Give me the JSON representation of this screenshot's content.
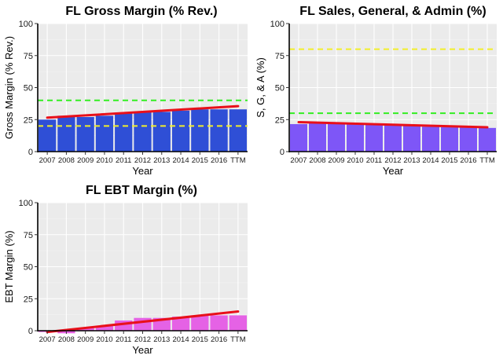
{
  "chart_data": [
    {
      "type": "bar",
      "title": "FL Gross Margin (% Rev.)",
      "xlabel": "Year",
      "ylabel": "Gross Margin (% Rev.)",
      "ylim": [
        0,
        100
      ],
      "yticks": [
        0,
        25,
        50,
        75,
        100
      ],
      "grid": true,
      "categories": [
        "2007",
        "2008",
        "2009",
        "2010",
        "2011",
        "2012",
        "2013",
        "2014",
        "2015",
        "2016",
        "TTM"
      ],
      "values": [
        25,
        28,
        27,
        28,
        30,
        31,
        31,
        32,
        33,
        33,
        33
      ],
      "bar_color": "#2f4fd6",
      "trend_line": {
        "start": 26.5,
        "end": 35.5,
        "color": "#e8101a"
      },
      "reference_lines": [
        {
          "value": 40,
          "color": "#33ee22",
          "style": "dashed"
        },
        {
          "value": 20,
          "color": "#f2ee2a",
          "style": "dashed"
        }
      ]
    },
    {
      "type": "bar",
      "title": "FL Sales, General, & Admin (%)",
      "xlabel": "Year",
      "ylabel": "S, G, & A (%)",
      "ylim": [
        0,
        100
      ],
      "yticks": [
        0,
        25,
        50,
        75,
        100
      ],
      "grid": true,
      "categories": [
        "2007",
        "2008",
        "2009",
        "2010",
        "2011",
        "2012",
        "2013",
        "2014",
        "2015",
        "2016",
        "TTM"
      ],
      "values": [
        21.5,
        22.5,
        22,
        21.5,
        21,
        20.5,
        20,
        19.5,
        19,
        19,
        18.5
      ],
      "bar_color": "#7e56f7",
      "trend_line": {
        "start": 23,
        "end": 19,
        "color": "#e8101a"
      },
      "reference_lines": [
        {
          "value": 30,
          "color": "#33ee22",
          "style": "dashed"
        },
        {
          "value": 80,
          "color": "#f2ee2a",
          "style": "dashed"
        }
      ]
    },
    {
      "type": "bar",
      "title": "FL EBT Margin (%)",
      "xlabel": "Year",
      "ylabel": "EBT Margin (%)",
      "ylim": [
        0,
        100
      ],
      "yticks": [
        0,
        25,
        50,
        75,
        100
      ],
      "grid": true,
      "categories": [
        "2007",
        "2008",
        "2009",
        "2010",
        "2011",
        "2012",
        "2013",
        "2014",
        "2015",
        "2016",
        "TTM"
      ],
      "values": [
        -1,
        -2,
        2,
        4,
        8,
        10,
        10,
        11,
        12,
        12,
        12
      ],
      "bar_color": "#e562e5",
      "trend_line": {
        "start": -1,
        "end": 15,
        "color": "#e8101a"
      },
      "reference_lines": []
    }
  ]
}
